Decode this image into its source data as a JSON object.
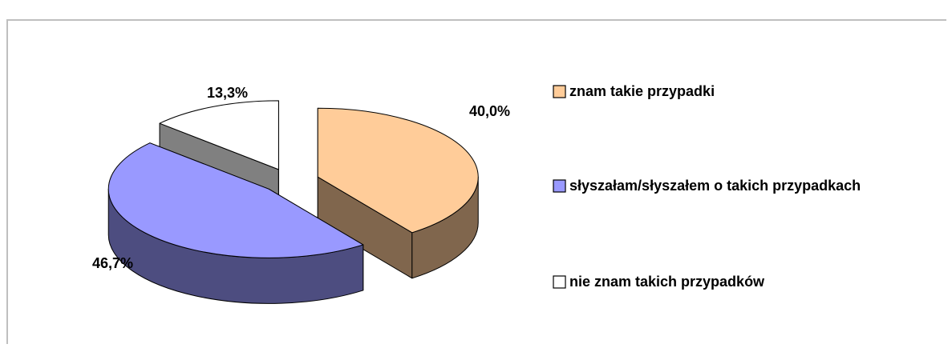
{
  "chart_data": {
    "type": "pie3d",
    "categories": [
      "znam takie przypadki",
      "słyszałam/słyszałem  o takich przypadkach",
      "nie znam takich przypadków"
    ],
    "values": [
      40.0,
      46.7,
      13.3
    ],
    "value_labels": [
      "40,0%",
      "46,7%",
      "13,3%"
    ],
    "colors": [
      "#ffcc99",
      "#9999ff",
      "#ffffff"
    ],
    "legend": "right"
  }
}
